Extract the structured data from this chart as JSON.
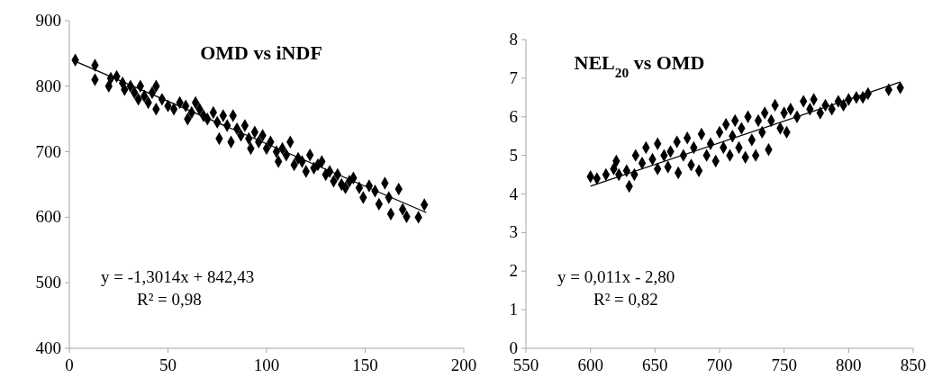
{
  "chart_data": [
    {
      "type": "scatter",
      "title": "OMD vs iNDF",
      "xlim": [
        0,
        200
      ],
      "xticks": [
        0,
        50,
        100,
        150,
        200
      ],
      "ylim": [
        400,
        900
      ],
      "yticks": [
        400,
        500,
        600,
        700,
        800,
        900
      ],
      "annotations": [
        "y = -1,3014x + 842,43",
        "R² = 0,98"
      ],
      "series": [
        {
          "color": "#000000",
          "marker": "diamond",
          "x": [
            3,
            13,
            13,
            20,
            21,
            24,
            27,
            28,
            31,
            33,
            35,
            36,
            38,
            40,
            42,
            44,
            44,
            47,
            50,
            53,
            56,
            59,
            60,
            62,
            64,
            66,
            68,
            70,
            73,
            75,
            76,
            78,
            80,
            82,
            83,
            85,
            87,
            89,
            91,
            92,
            94,
            96,
            98,
            100,
            102,
            105,
            106,
            108,
            110,
            112,
            114,
            116,
            118,
            120,
            122,
            124,
            126,
            128,
            130,
            132,
            134,
            136,
            138,
            140,
            142,
            144,
            147,
            149,
            152,
            155,
            157,
            160,
            162,
            163,
            167,
            169,
            171,
            177,
            180
          ],
          "values": [
            840,
            832,
            810,
            800,
            812,
            815,
            805,
            795,
            800,
            790,
            780,
            800,
            785,
            775,
            790,
            800,
            765,
            780,
            770,
            765,
            775,
            770,
            750,
            760,
            775,
            765,
            755,
            750,
            760,
            745,
            720,
            755,
            740,
            715,
            755,
            735,
            725,
            740,
            720,
            705,
            730,
            715,
            725,
            705,
            715,
            700,
            685,
            705,
            695,
            715,
            680,
            690,
            685,
            670,
            695,
            675,
            680,
            685,
            665,
            670,
            655,
            665,
            650,
            645,
            655,
            660,
            645,
            630,
            648,
            640,
            620,
            652,
            630,
            605,
            643,
            612,
            601,
            600,
            619
          ]
        },
        {
          "type": "line",
          "color": "#000000",
          "x": [
            3,
            181
          ],
          "values": [
            838,
            607
          ]
        }
      ]
    },
    {
      "type": "scatter",
      "title": "NEL$_{20}$ vs OMD",
      "xlim": [
        550,
        850
      ],
      "xticks": [
        550,
        600,
        650,
        700,
        750,
        800,
        850
      ],
      "ylim": [
        0,
        8
      ],
      "yticks": [
        0,
        1,
        2,
        3,
        4,
        5,
        6,
        7,
        8
      ],
      "annotations": [
        "y = 0,011x - 2,80",
        "R² = 0,82"
      ],
      "series": [
        {
          "color": "#000000",
          "marker": "diamond",
          "x": [
            600,
            605,
            612,
            618,
            620,
            622,
            628,
            630,
            634,
            635,
            640,
            643,
            648,
            652,
            652,
            657,
            660,
            662,
            667,
            668,
            672,
            675,
            678,
            680,
            684,
            686,
            690,
            693,
            697,
            700,
            703,
            705,
            708,
            710,
            712,
            715,
            717,
            720,
            722,
            725,
            728,
            730,
            733,
            735,
            738,
            740,
            743,
            747,
            750,
            752,
            755,
            760,
            765,
            770,
            773,
            778,
            782,
            787,
            792,
            796,
            800,
            806,
            811,
            815,
            831,
            840
          ],
          "values": [
            4.45,
            4.4,
            4.5,
            4.65,
            4.85,
            4.5,
            4.6,
            4.2,
            4.5,
            5.0,
            4.8,
            5.2,
            4.9,
            5.3,
            4.65,
            5.0,
            4.7,
            5.1,
            5.35,
            4.55,
            5.0,
            5.45,
            4.75,
            5.2,
            4.6,
            5.55,
            5.0,
            5.3,
            4.85,
            5.6,
            5.2,
            5.8,
            5.0,
            5.5,
            5.9,
            5.2,
            5.7,
            4.95,
            6.0,
            5.4,
            5.0,
            5.9,
            5.6,
            6.1,
            5.15,
            5.9,
            6.3,
            5.7,
            6.1,
            5.6,
            6.2,
            6.0,
            6.4,
            6.2,
            6.45,
            6.1,
            6.3,
            6.2,
            6.4,
            6.3,
            6.45,
            6.5,
            6.5,
            6.6,
            6.7,
            6.75
          ]
        },
        {
          "type": "line",
          "color": "#000000",
          "x": [
            600,
            840
          ],
          "values": [
            4.2,
            6.9
          ]
        }
      ]
    }
  ]
}
